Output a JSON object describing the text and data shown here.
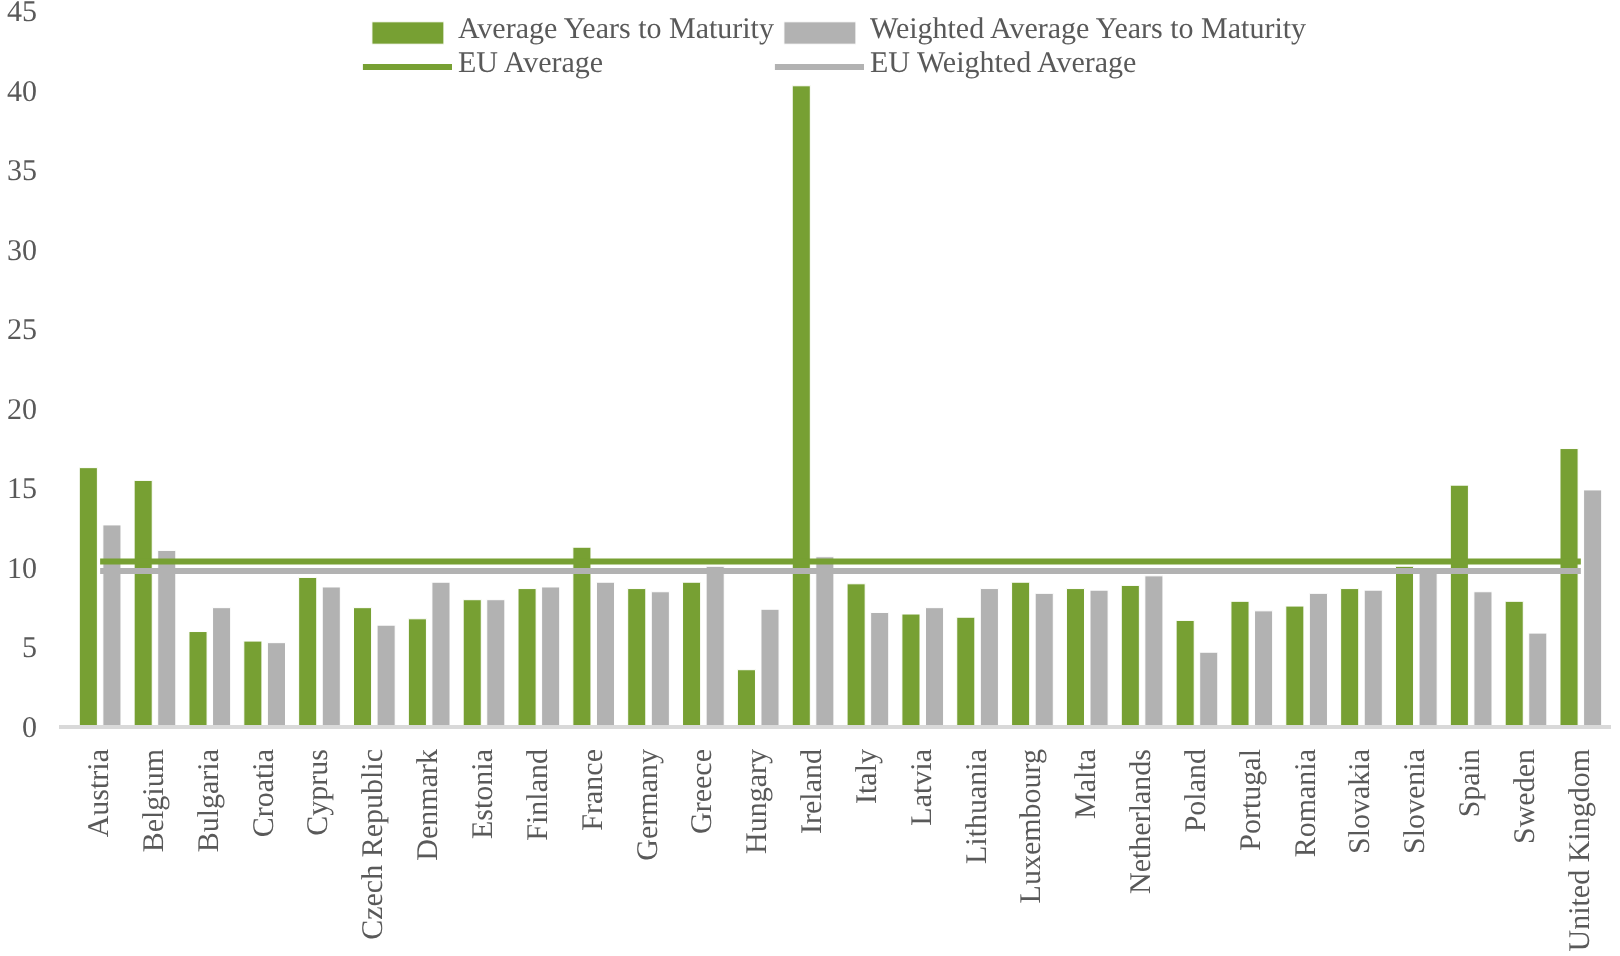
{
  "chart_data": {
    "type": "bar",
    "categories": [
      "Austria",
      "Belgium",
      "Bulgaria",
      "Croatia",
      "Cyprus",
      "Czech Republic",
      "Denmark",
      "Estonia",
      "Finland",
      "France",
      "Germany",
      "Greece",
      "Hungary",
      "Ireland",
      "Italy",
      "Latvia",
      "Lithuania",
      "Luxembourg",
      "Malta",
      "Netherlands",
      "Poland",
      "Portugal",
      "Romania",
      "Slovakia",
      "Slovenia",
      "Spain",
      "Sweden",
      "United Kingdom"
    ],
    "series": [
      {
        "name": "Average Years to Maturity",
        "color": "#77a033",
        "values": [
          16.3,
          15.5,
          6.0,
          5.4,
          9.4,
          7.5,
          6.8,
          8.0,
          8.7,
          11.3,
          8.7,
          9.1,
          3.6,
          40.3,
          9.0,
          7.1,
          6.9,
          9.1,
          8.7,
          8.9,
          6.7,
          7.9,
          7.6,
          8.7,
          10.1,
          15.2,
          7.9,
          17.5
        ]
      },
      {
        "name": "Weighted Average Years to Maturity",
        "color": "#b2b2b2",
        "values": [
          12.7,
          11.1,
          7.5,
          5.3,
          8.8,
          6.4,
          9.1,
          8.0,
          8.8,
          9.1,
          8.5,
          10.1,
          7.4,
          10.7,
          7.2,
          7.5,
          8.7,
          8.4,
          8.6,
          9.5,
          4.7,
          7.3,
          8.4,
          8.6,
          9.9,
          8.5,
          5.9,
          14.9
        ]
      },
      {
        "name": "EU Average",
        "type": "line",
        "color": "#77a033",
        "values": [
          10.4,
          10.4,
          10.4,
          10.4,
          10.4,
          10.4,
          10.4,
          10.4,
          10.4,
          10.4,
          10.4,
          10.4,
          10.4,
          10.4,
          10.4,
          10.4,
          10.4,
          10.4,
          10.4,
          10.4,
          10.4,
          10.4,
          10.4,
          10.4,
          10.4,
          10.4,
          10.4,
          10.4
        ]
      },
      {
        "name": "EU Weighted Average",
        "type": "line",
        "color": "#b2b2b2",
        "values": [
          9.8,
          9.8,
          9.8,
          9.8,
          9.8,
          9.8,
          9.8,
          9.8,
          9.8,
          9.8,
          9.8,
          9.8,
          9.8,
          9.8,
          9.8,
          9.8,
          9.8,
          9.8,
          9.8,
          9.8,
          9.8,
          9.8,
          9.8,
          9.8,
          9.8,
          9.8,
          9.8,
          9.8
        ]
      }
    ],
    "ylim": [
      0,
      45
    ],
    "yticks": [
      0,
      5,
      10,
      15,
      20,
      25,
      30,
      35,
      40,
      45
    ],
    "grid": false,
    "legend": "top"
  }
}
